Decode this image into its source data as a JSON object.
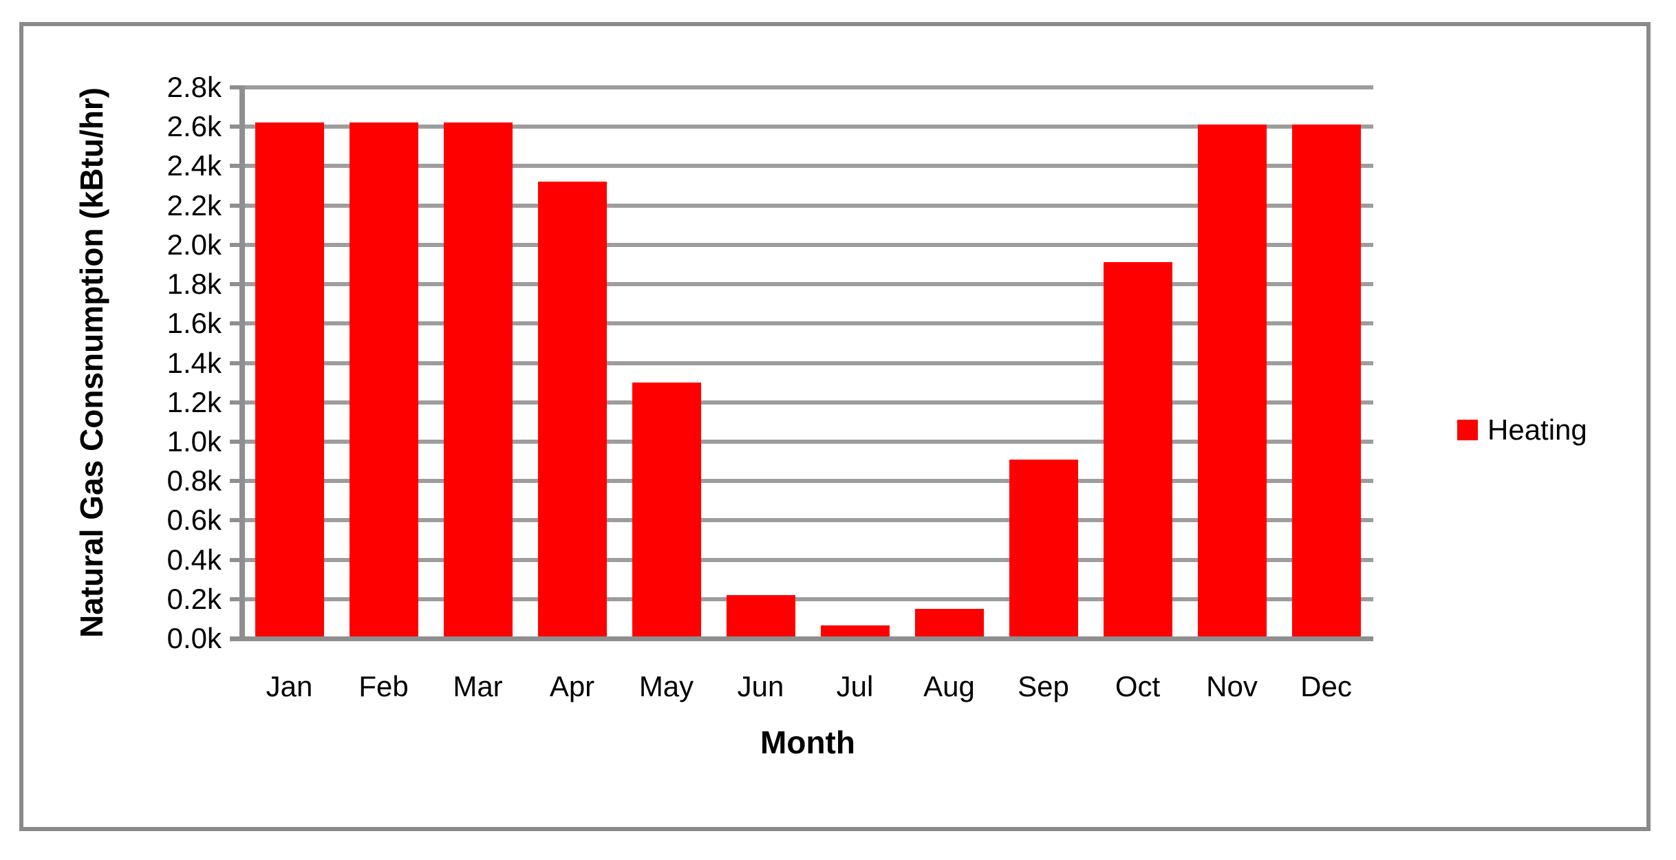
{
  "chart_data": {
    "type": "bar",
    "title": "",
    "categories": [
      "Jan",
      "Feb",
      "Mar",
      "Apr",
      "May",
      "Jun",
      "Jul",
      "Aug",
      "Sep",
      "Oct",
      "Nov",
      "Dec"
    ],
    "series": [
      {
        "name": "Heating",
        "color": "#ff0000",
        "values": [
          2610,
          2610,
          2610,
          2310,
          1290,
          210,
          55,
          140,
          900,
          1900,
          2600,
          2600
        ]
      }
    ],
    "xlabel": "Month",
    "ylabel": "Natural Gas Consnumption (kBtu/hr)",
    "ylim": [
      0,
      2800
    ],
    "ytick_interval": 200,
    "ytick_labels": [
      "0.0k",
      "0.2k",
      "0.4k",
      "0.6k",
      "0.8k",
      "1.0k",
      "1.2k",
      "1.4k",
      "1.6k",
      "1.8k",
      "2.0k",
      "2.2k",
      "2.4k",
      "2.6k",
      "2.8k"
    ],
    "grid": "horizontal-major",
    "legend_position": "right",
    "colors": {
      "bar": "#ff0000",
      "gridline": "#9d9d9d",
      "axis": "#8f8f8f",
      "figure_border": "#8a8a8a",
      "text": "#000000",
      "background": "#ffffff"
    }
  },
  "legend": {
    "label": "Heating"
  }
}
